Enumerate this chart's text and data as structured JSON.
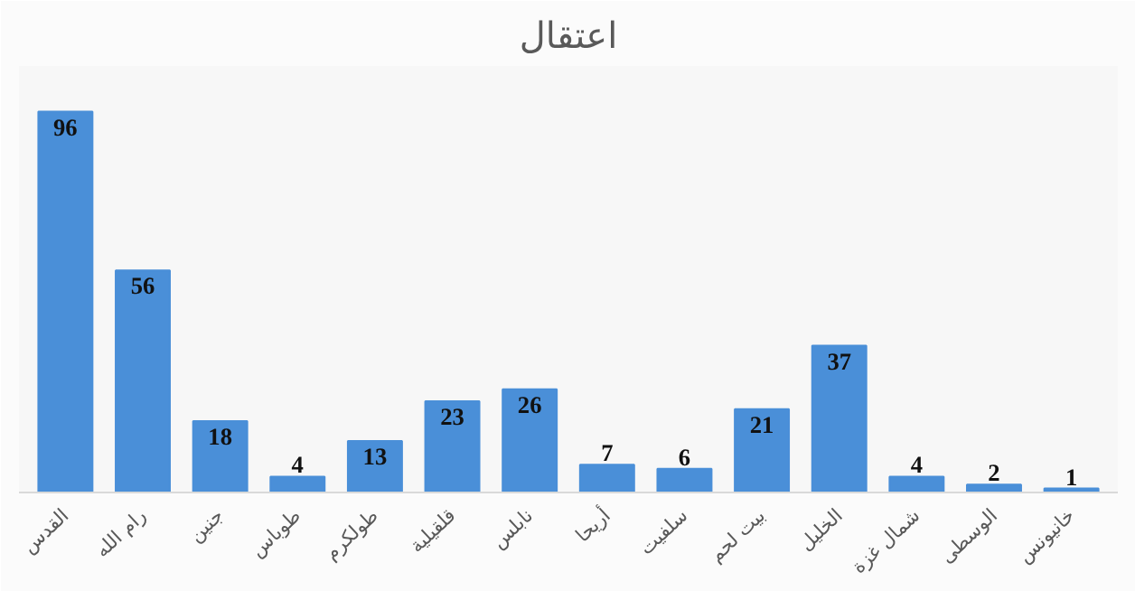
{
  "chart_data": {
    "type": "bar",
    "title": "اعتقال",
    "categories": [
      "القدس",
      "رام الله",
      "جنين",
      "طوباس",
      "طولكرم",
      "قلقيلية",
      "نابلس",
      "أريحا",
      "سلفيت",
      "بيت لحم",
      "الخليل",
      "شمال غزة",
      "الوسطى",
      "خانيونس"
    ],
    "values": [
      96,
      56,
      18,
      4,
      13,
      23,
      26,
      7,
      6,
      21,
      37,
      4,
      2,
      1
    ],
    "color": "#4a8fd8",
    "data_labels": true
  }
}
